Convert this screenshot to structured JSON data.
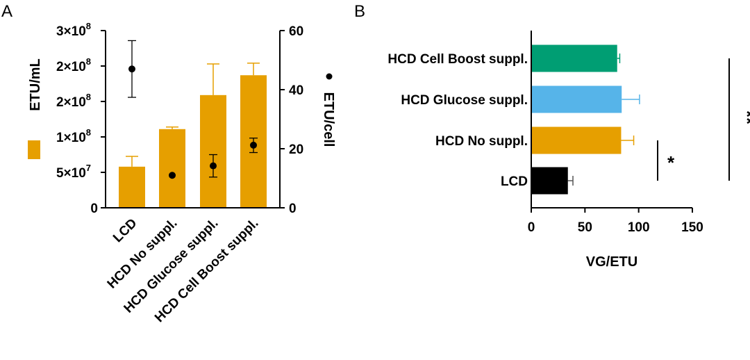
{
  "chart_data": [
    {
      "panel_label": "A",
      "type": "bar",
      "categories": [
        "LCD",
        "HCD No suppl.",
        "HCD Glucose suppl.",
        "HCD Cell Boost suppl."
      ],
      "left_axis": {
        "label": "ETU/mL",
        "ylim": [
          0,
          250000000
        ],
        "ticks": [
          0,
          50000000,
          100000000,
          150000000,
          200000000,
          250000000
        ],
        "tick_labels": [
          {
            "mant": "0",
            "exp": ""
          },
          {
            "mant": "5×10",
            "exp": "7"
          },
          {
            "mant": "1×10",
            "exp": "8"
          },
          {
            "mant": "2×10",
            "exp": "8"
          },
          {
            "mant": "2×10",
            "exp": "8"
          },
          {
            "mant": "3×10",
            "exp": "8"
          }
        ]
      },
      "right_axis": {
        "label": "ETU/cell",
        "ylim": [
          0,
          60
        ],
        "ticks": [
          0,
          20,
          40,
          60
        ],
        "tick_labels": [
          "0",
          "20",
          "40",
          "60"
        ]
      },
      "series": [
        {
          "name": "ETU/mL",
          "kind": "bar",
          "axis": "left",
          "color": "#E69F00",
          "values": [
            58000000,
            111000000,
            159000000,
            187000000
          ],
          "error_upper": [
            72500000,
            114000000,
            203000000,
            204000000
          ]
        },
        {
          "name": "ETU/cell",
          "kind": "point",
          "axis": "right",
          "color": "#000000",
          "values": [
            47,
            11,
            14.2,
            21.2
          ],
          "error_lower": [
            37.4,
            null,
            10.4,
            18.7
          ],
          "error_upper": [
            56.6,
            null,
            18,
            23.6
          ]
        }
      ],
      "legend": {
        "bar_label": "ETU/mL",
        "point_label": "ETU/cell",
        "point_symbol": "•"
      }
    },
    {
      "panel_label": "B",
      "type": "bar",
      "orientation": "horizontal",
      "categories": [
        "HCD Cell Boost suppl.",
        "HCD Glucose suppl.",
        "HCD No suppl.",
        "LCD"
      ],
      "values": [
        80,
        84.2,
        83.7,
        34.1
      ],
      "error_upper": [
        82.4,
        100.8,
        95.4,
        38.8
      ],
      "colors": [
        "#009E73",
        "#56B4E9",
        "#E69F00",
        "#000000"
      ],
      "xlabel": "VG/ETU",
      "xlim": [
        0,
        150
      ],
      "xticks": [
        0,
        50,
        100,
        150
      ],
      "xtick_labels": [
        "0",
        "50",
        "100",
        "150"
      ],
      "significance": [
        {
          "from": "HCD No suppl.",
          "to": "LCD",
          "label": "*"
        },
        {
          "from": "HCD Cell Boost suppl.",
          "to": "LCD",
          "label": "**"
        }
      ]
    }
  ]
}
